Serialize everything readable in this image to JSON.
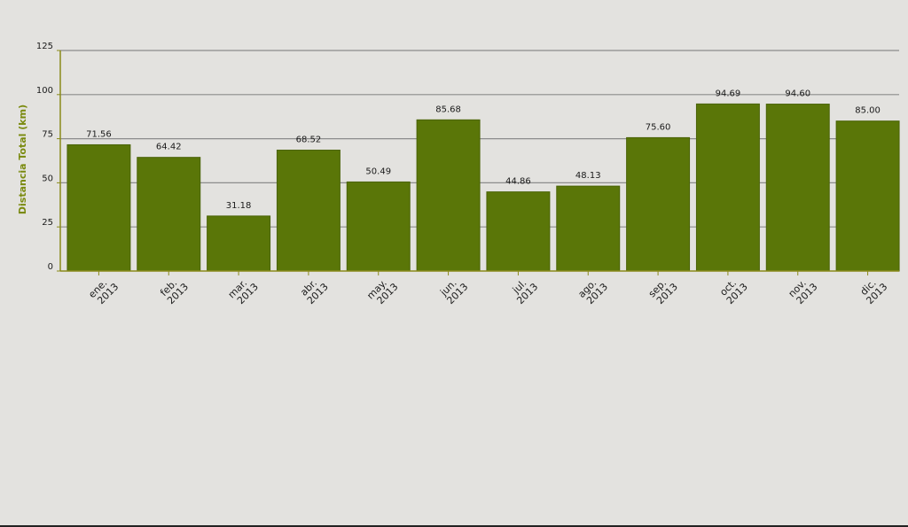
{
  "chart_data": {
    "type": "bar",
    "title": "",
    "ylabel": "Distancia Total (km)",
    "xlabel": "",
    "ylim": [
      0,
      125
    ],
    "yticks": [
      0,
      25,
      50,
      75,
      100,
      125
    ],
    "grid": true,
    "categories": [
      [
        "ene.",
        "2013"
      ],
      [
        "feb.",
        "2013"
      ],
      [
        "mar.",
        "2013"
      ],
      [
        "abr.",
        "2013"
      ],
      [
        "may.",
        "2013"
      ],
      [
        "jun.",
        "2013"
      ],
      [
        "jul.",
        "2013"
      ],
      [
        "ago.",
        "2013"
      ],
      [
        "sep.",
        "2013"
      ],
      [
        "oct.",
        "2013"
      ],
      [
        "nov.",
        "2013"
      ],
      [
        "dic.",
        "2013"
      ]
    ],
    "values": [
      71.56,
      64.42,
      31.18,
      68.52,
      50.49,
      85.68,
      44.86,
      48.13,
      75.6,
      94.69,
      94.6,
      85.0
    ],
    "value_labels": [
      "71.56",
      "64.42",
      "31.18",
      "68.52",
      "50.49",
      "85.68",
      "44.86",
      "48.13",
      "75.60",
      "94.69",
      "94.60",
      "85.00"
    ],
    "colors": {
      "bar": "#5a7608",
      "bar_edge": "#4a6306",
      "axis": "#8a8a1a",
      "grid": "#8c8c8c",
      "ylabel": "#7a8a0e",
      "text": "#1a1a1a"
    }
  }
}
